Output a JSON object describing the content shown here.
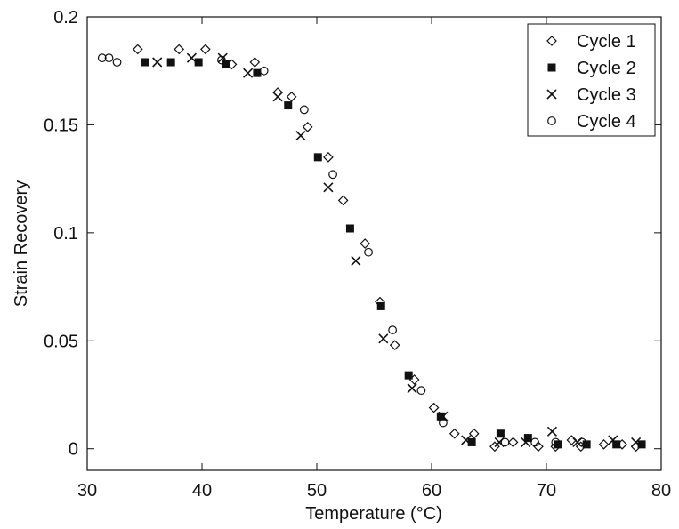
{
  "chart_data": {
    "type": "scatter",
    "title": "",
    "xlabel": "Temperature (°C)",
    "ylabel": "Strain Recovery",
    "xlim": [
      30,
      80
    ],
    "ylim": [
      -0.01,
      0.2
    ],
    "xticks": [
      30,
      40,
      50,
      60,
      70,
      80
    ],
    "xtick_labels": [
      "30",
      "40",
      "50",
      "60",
      "70",
      "80"
    ],
    "yticks": [
      0,
      0.05,
      0.1,
      0.15,
      0.2
    ],
    "ytick_labels": [
      "0",
      "0.05",
      "0.1",
      "0.15",
      "0.2"
    ],
    "grid": false,
    "legend_position": "top-right",
    "series": [
      {
        "name": "Cycle 1",
        "marker": "diamond",
        "color": "#111111",
        "x": [
          34.4,
          38.0,
          40.3,
          42.6,
          44.6,
          46.6,
          47.8,
          49.2,
          51.0,
          52.3,
          54.2,
          55.5,
          56.8,
          58.5,
          60.2,
          62.0,
          63.7,
          65.5,
          67.1,
          69.3,
          70.8,
          72.2,
          73.0,
          75.0,
          76.6,
          77.8
        ],
        "y": [
          0.185,
          0.185,
          0.185,
          0.178,
          0.179,
          0.165,
          0.163,
          0.149,
          0.135,
          0.115,
          0.095,
          0.068,
          0.048,
          0.032,
          0.019,
          0.007,
          0.007,
          0.001,
          0.003,
          0.001,
          0.001,
          0.004,
          0.001,
          0.002,
          0.002,
          0.001
        ]
      },
      {
        "name": "Cycle 2",
        "marker": "filled-square",
        "color": "#111111",
        "x": [
          35.0,
          37.3,
          39.7,
          42.1,
          44.8,
          47.5,
          50.1,
          52.9,
          55.6,
          58.0,
          60.8,
          63.5,
          66.0,
          68.4,
          71.0,
          73.5,
          76.1,
          78.3
        ],
        "y": [
          0.179,
          0.179,
          0.179,
          0.178,
          0.174,
          0.159,
          0.135,
          0.102,
          0.066,
          0.034,
          0.015,
          0.003,
          0.007,
          0.005,
          0.002,
          0.002,
          0.002,
          0.002
        ]
      },
      {
        "name": "Cycle 3",
        "marker": "x",
        "color": "#111111",
        "x": [
          36.1,
          39.1,
          41.8,
          44.0,
          46.6,
          48.6,
          51.0,
          53.4,
          55.8,
          58.3,
          61.0,
          63.0,
          65.9,
          68.2,
          70.5,
          72.7,
          75.8,
          77.8
        ],
        "y": [
          0.179,
          0.181,
          0.181,
          0.174,
          0.163,
          0.145,
          0.121,
          0.087,
          0.051,
          0.028,
          0.015,
          0.004,
          0.003,
          0.003,
          0.008,
          0.003,
          0.004,
          0.003
        ]
      },
      {
        "name": "Cycle 4",
        "marker": "open-circle",
        "color": "#111111",
        "x": [
          31.3,
          31.9,
          32.6,
          41.7,
          45.4,
          48.9,
          51.4,
          54.5,
          56.6,
          59.1,
          61.0,
          66.4,
          69.0,
          70.8,
          73.1
        ],
        "y": [
          0.181,
          0.181,
          0.179,
          0.18,
          0.175,
          0.157,
          0.127,
          0.091,
          0.055,
          0.027,
          0.012,
          0.003,
          0.003,
          0.003,
          0.003
        ]
      }
    ]
  }
}
